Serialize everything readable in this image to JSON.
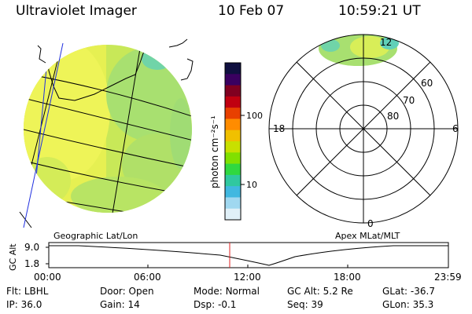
{
  "header": {
    "title": "Ultraviolet Imager",
    "date": "10 Feb 07",
    "time": "10:59:21 UT"
  },
  "colorbar": {
    "unit_label": "photon cm⁻²s⁻¹",
    "ticks": [
      "100",
      "10"
    ],
    "colors": [
      "#101040",
      "#3a0060",
      "#800020",
      "#c00010",
      "#e84000",
      "#ff8c00",
      "#f0c000",
      "#c8e000",
      "#80e000",
      "#30d840",
      "#30c8a0",
      "#40b8e0",
      "#a0d8f0",
      "#e0f0f8"
    ]
  },
  "left_panel": {
    "caption": "Geographic Lat/Lon",
    "disk_colors": {
      "yellow": "#e8f050",
      "green": "#a8e070",
      "teal": "#60d0b0"
    }
  },
  "right_panel": {
    "caption": "Apex MLat/MLT",
    "lat_labels": [
      "60",
      "70",
      "80"
    ],
    "mlt_labels": {
      "top": "12",
      "left": "18",
      "right": "6",
      "bottom": "0"
    }
  },
  "altitude_plot": {
    "ylabel": "GC Alt",
    "yticks": [
      "9.0",
      "1.8"
    ],
    "xticks": [
      "00:00",
      "06:00",
      "12:00",
      "18:00",
      "23:59"
    ],
    "marker_color": "#e02020",
    "marker_time_hours": 10.99
  },
  "status": {
    "row1": [
      {
        "label": "Flt:",
        "value": "LBHL"
      },
      {
        "label": "Door:",
        "value": "Open"
      },
      {
        "label": "Mode:",
        "value": "Normal"
      },
      {
        "label": "GC Alt:",
        "value": "5.2 Re"
      },
      {
        "label": "GLat:",
        "value": "-36.7"
      }
    ],
    "row2": [
      {
        "label": "IP:",
        "value": "36.0"
      },
      {
        "label": "Gain:",
        "value": "14"
      },
      {
        "label": "Dsp:",
        "value": "-0.1"
      },
      {
        "label": "Seq:",
        "value": "39"
      },
      {
        "label": "GLon:",
        "value": "35.3"
      }
    ]
  }
}
